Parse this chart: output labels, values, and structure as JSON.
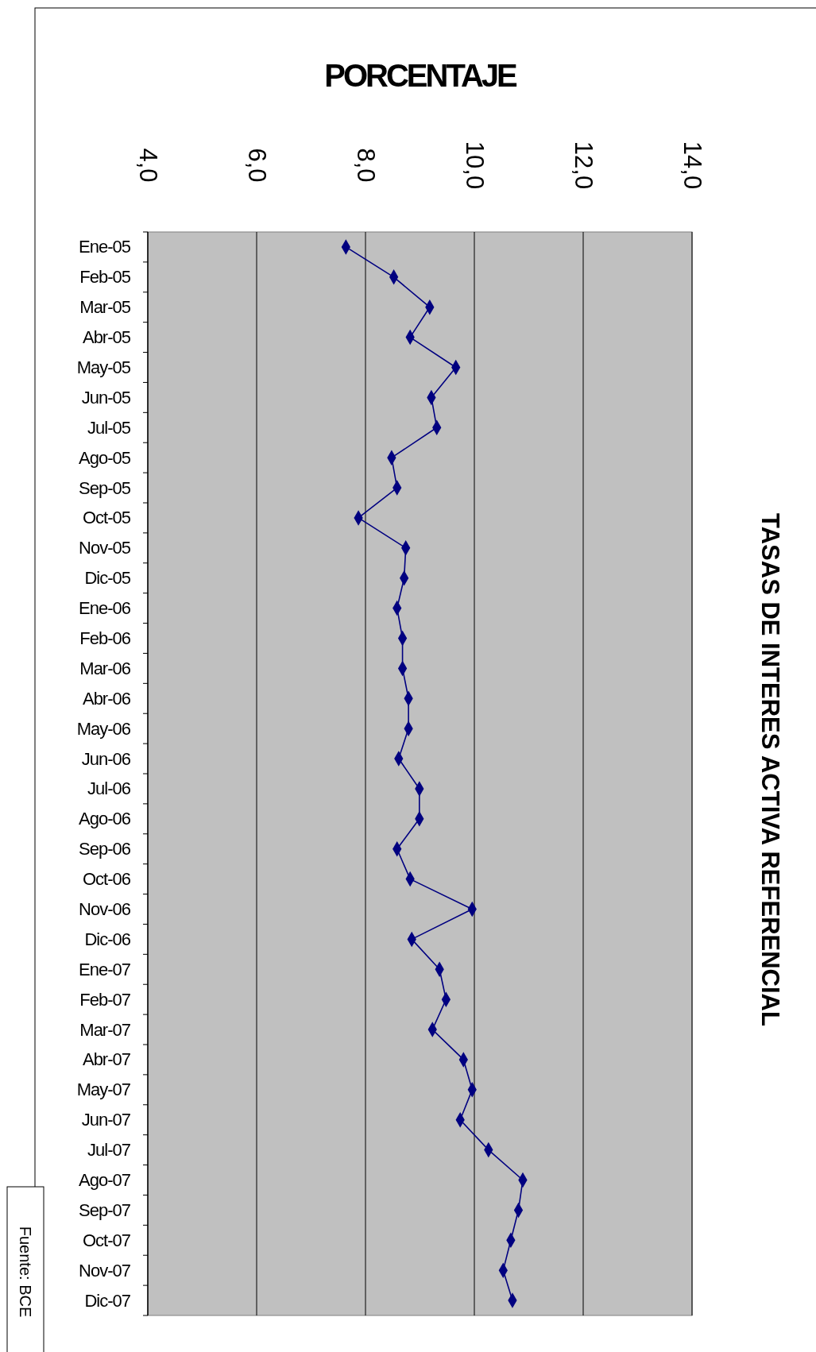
{
  "chart_data": {
    "type": "line",
    "orientation": "horizontal",
    "title": "TASAS DE INTERES ACTIVA REFERENCIAL",
    "xlabel": "PORCENTAJE",
    "categories": [
      "Ene-05",
      "Feb-05",
      "Mar-05",
      "Abr-05",
      "May-05",
      "Jun-05",
      "Jul-05",
      "Ago-05",
      "Sep-05",
      "Oct-05",
      "Nov-05",
      "Dic-05",
      "Ene-06",
      "Feb-06",
      "Mar-06",
      "Abr-06",
      "May-06",
      "Jun-06",
      "Jul-06",
      "Ago-06",
      "Sep-06",
      "Oct-06",
      "Nov-06",
      "Dic-06",
      "Ene-07",
      "Feb-07",
      "Mar-07",
      "Abr-07",
      "May-07",
      "Jun-07",
      "Jul-07",
      "Ago-07",
      "Sep-07",
      "Oct-07",
      "Nov-07",
      "Dic-07"
    ],
    "series": [
      {
        "color": "#000080",
        "values": [
          7.64,
          8.52,
          9.18,
          8.82,
          9.66,
          9.21,
          9.31,
          8.48,
          8.58,
          7.87,
          8.74,
          8.71,
          8.58,
          8.68,
          8.68,
          8.79,
          8.79,
          8.61,
          8.99,
          8.99,
          8.58,
          8.82,
          9.96,
          8.85,
          9.36,
          9.48,
          9.23,
          9.8,
          9.96,
          9.74,
          10.26,
          10.89,
          10.81,
          10.67,
          10.53,
          10.7
        ]
      }
    ],
    "xlim": [
      4,
      14
    ],
    "xticks": [
      {
        "value": 4,
        "label": "4,0"
      },
      {
        "value": 6,
        "label": "6,0"
      },
      {
        "value": 8,
        "label": "8,0"
      },
      {
        "value": 10,
        "label": "10,0"
      },
      {
        "value": 12,
        "label": "12,0"
      },
      {
        "value": 14,
        "label": "14,0"
      }
    ],
    "grid": "x",
    "marker": "diamond",
    "line_style": "solid",
    "annotations": [
      "Fuente: BCE"
    ]
  }
}
